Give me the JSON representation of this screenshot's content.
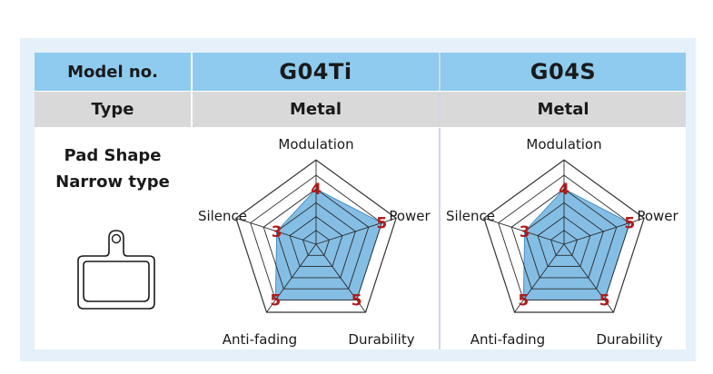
{
  "table": {
    "header": {
      "model_label": "Model no.",
      "models": [
        "G04Ti",
        "G04S"
      ]
    },
    "type_row": {
      "label": "Type",
      "values": [
        "Metal",
        "Metal"
      ]
    },
    "shape_row": {
      "line1": "Pad Shape",
      "line2": "Narrow type"
    }
  },
  "colors": {
    "header_bg": "#8ecbef",
    "type_bg": "#d9d9d9",
    "frame_bg": "#e6f0fa",
    "fill": "#6fb3e0",
    "value_text": "#b01c1c"
  },
  "chart_data": [
    {
      "type": "radar",
      "title": "G04Ti",
      "axes": [
        "Modulation",
        "Power",
        "Durability",
        "Anti-fading",
        "Silence"
      ],
      "scale_max": 5,
      "values": [
        4,
        5,
        5,
        5,
        3
      ]
    },
    {
      "type": "radar",
      "title": "G04S",
      "axes": [
        "Modulation",
        "Power",
        "Durability",
        "Anti-fading",
        "Silence"
      ],
      "scale_max": 5,
      "values": [
        4,
        5,
        5,
        5,
        3
      ]
    }
  ]
}
